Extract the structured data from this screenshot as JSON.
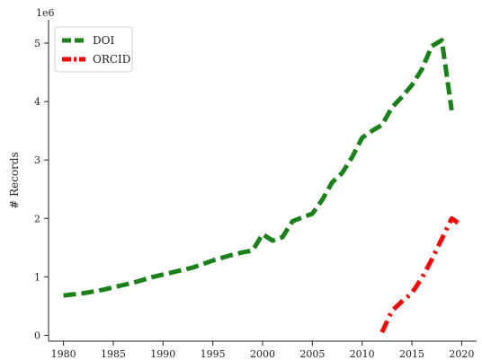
{
  "chart_data": {
    "type": "line",
    "title": "",
    "xlabel": "",
    "ylabel": "# Records",
    "y_offset_label": "1e6",
    "xlim": [
      1978.5,
      2021.5
    ],
    "ylim": [
      -0.1,
      5.4
    ],
    "x_ticks": [
      1980,
      1985,
      1990,
      1995,
      2000,
      2005,
      2010,
      2015,
      2020
    ],
    "y_ticks": [
      0,
      1,
      2,
      3,
      4,
      5
    ],
    "grid": false,
    "legend_position": "top-left",
    "series": [
      {
        "name": "DOI",
        "color": "#1a801a",
        "line_style": "dashed",
        "x": [
          1980,
          1981,
          1982,
          1983,
          1984,
          1985,
          1986,
          1987,
          1988,
          1989,
          1990,
          1991,
          1992,
          1993,
          1994,
          1995,
          1996,
          1997,
          1998,
          1999,
          2000,
          2001,
          2002,
          2003,
          2004,
          2005,
          2006,
          2007,
          2008,
          2009,
          2010,
          2011,
          2012,
          2013,
          2014,
          2015,
          2016,
          2017,
          2018,
          2019
        ],
        "values": [
          0.68,
          0.7,
          0.72,
          0.75,
          0.78,
          0.82,
          0.86,
          0.9,
          0.95,
          1.0,
          1.04,
          1.08,
          1.12,
          1.16,
          1.22,
          1.28,
          1.33,
          1.38,
          1.42,
          1.45,
          1.73,
          1.62,
          1.68,
          1.95,
          2.02,
          2.08,
          2.32,
          2.62,
          2.78,
          3.05,
          3.38,
          3.5,
          3.6,
          3.9,
          4.08,
          4.28,
          4.55,
          4.95,
          5.05,
          3.85
        ]
      },
      {
        "name": "ORCID",
        "color": "#ff0000",
        "line_style": "dashdot",
        "x": [
          2012,
          2013,
          2014,
          2015,
          2016,
          2017,
          2018,
          2019,
          2020
        ],
        "values": [
          0.05,
          0.42,
          0.58,
          0.72,
          0.98,
          1.3,
          1.65,
          2.0,
          1.88
        ]
      }
    ]
  }
}
